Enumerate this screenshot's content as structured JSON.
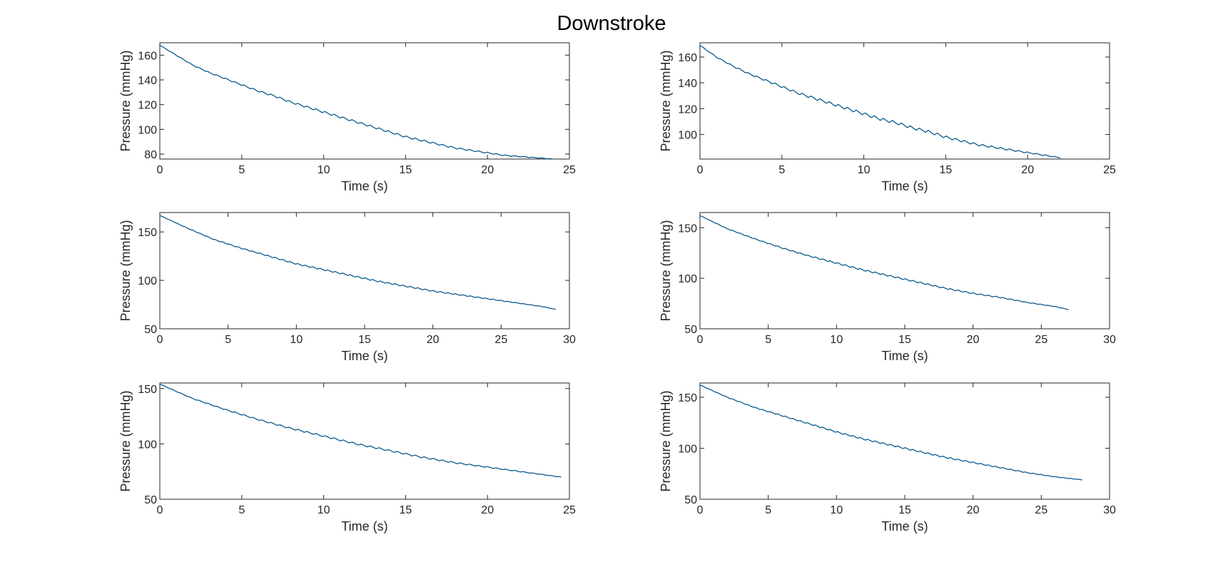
{
  "figure": {
    "title": "Downstroke",
    "line_color": "#0b5a8e",
    "axes_color": "#262626"
  },
  "chart_data": [
    {
      "type": "line",
      "xlabel": "Time (s)",
      "ylabel": "Pressure (mmHg)",
      "xlim": [
        0,
        25
      ],
      "ylim": [
        76,
        170
      ],
      "xticks": [
        0,
        5,
        10,
        15,
        20,
        25
      ],
      "yticks": [
        80,
        100,
        120,
        140,
        160
      ],
      "grid": false,
      "series": [
        {
          "x": [
            0,
            1,
            2,
            3,
            4,
            5,
            6,
            7,
            8,
            9,
            10,
            11,
            12,
            13,
            14,
            15,
            16,
            17,
            18,
            19,
            20,
            21,
            22,
            23,
            24
          ],
          "y": [
            168,
            160,
            152,
            146,
            141,
            136,
            131,
            127,
            122,
            118,
            114,
            110,
            106,
            102,
            98,
            94,
            91,
            88,
            85,
            83,
            81,
            79,
            78,
            77,
            76
          ],
          "ripple_period": 0.55,
          "ripple_amplitude": 1.6
        }
      ]
    },
    {
      "type": "line",
      "xlabel": "Time (s)",
      "ylabel": "Pressure (mmHg)",
      "xlim": [
        0,
        25
      ],
      "ylim": [
        81,
        171
      ],
      "xticks": [
        0,
        5,
        10,
        15,
        20,
        25
      ],
      "yticks": [
        100,
        120,
        140,
        160
      ],
      "grid": false,
      "series": [
        {
          "x": [
            0,
            1,
            2,
            3,
            4,
            5,
            6,
            7,
            8,
            9,
            10,
            11,
            12,
            13,
            14,
            15,
            16,
            17,
            18,
            19,
            20,
            21,
            22
          ],
          "y": [
            169,
            160,
            153,
            147,
            142,
            137,
            132,
            128,
            124,
            120,
            116,
            112,
            109,
            105,
            102,
            98,
            95,
            92,
            90,
            88,
            86,
            84,
            82
          ],
          "ripple_period": 0.55,
          "ripple_amplitude": 2.2
        }
      ]
    },
    {
      "type": "line",
      "xlabel": "Time (s)",
      "ylabel": "Pressure (mmHg)",
      "xlim": [
        0,
        30
      ],
      "ylim": [
        50,
        170
      ],
      "xticks": [
        0,
        5,
        10,
        15,
        20,
        25,
        30
      ],
      "yticks": [
        50,
        100,
        150
      ],
      "grid": false,
      "series": [
        {
          "x": [
            0,
            2,
            4,
            6,
            8,
            10,
            12,
            14,
            16,
            18,
            20,
            22,
            24,
            26,
            28,
            29
          ],
          "y": [
            167,
            154,
            142,
            133,
            125,
            117,
            111,
            105,
            99,
            94,
            89,
            85,
            81,
            77,
            73,
            70
          ],
          "ripple_period": 0.55,
          "ripple_amplitude": 1.4
        }
      ]
    },
    {
      "type": "line",
      "xlabel": "Time (s)",
      "ylabel": "Pressure (mmHg)",
      "xlim": [
        0,
        30
      ],
      "ylim": [
        50,
        165
      ],
      "xticks": [
        0,
        5,
        10,
        15,
        20,
        25,
        30
      ],
      "yticks": [
        50,
        100,
        150
      ],
      "grid": false,
      "series": [
        {
          "x": [
            0,
            2,
            4,
            6,
            8,
            10,
            12,
            14,
            16,
            18,
            20,
            22,
            24,
            26,
            27
          ],
          "y": [
            162,
            149,
            139,
            130,
            122,
            115,
            108,
            102,
            96,
            90,
            85,
            81,
            76,
            72,
            69
          ],
          "ripple_period": 0.55,
          "ripple_amplitude": 1.4
        }
      ]
    },
    {
      "type": "line",
      "xlabel": "Time (s)",
      "ylabel": "Pressure (mmHg)",
      "xlim": [
        0,
        25
      ],
      "ylim": [
        50,
        155
      ],
      "xticks": [
        0,
        5,
        10,
        15,
        20,
        25
      ],
      "yticks": [
        50,
        100,
        150
      ],
      "grid": false,
      "series": [
        {
          "x": [
            0,
            2,
            4,
            6,
            8,
            10,
            12,
            14,
            16,
            18,
            20,
            22,
            24,
            24.5
          ],
          "y": [
            154,
            141,
            131,
            122,
            114,
            107,
            100,
            94,
            88,
            83,
            79,
            75,
            71,
            70
          ],
          "ripple_period": 0.55,
          "ripple_amplitude": 1.5
        }
      ]
    },
    {
      "type": "line",
      "xlabel": "Time (s)",
      "ylabel": "Pressure (mmHg)",
      "xlim": [
        0,
        30
      ],
      "ylim": [
        50,
        164
      ],
      "xticks": [
        0,
        5,
        10,
        15,
        20,
        25,
        30
      ],
      "yticks": [
        50,
        100,
        150
      ],
      "grid": false,
      "series": [
        {
          "x": [
            0,
            2,
            4,
            6,
            8,
            10,
            12,
            14,
            16,
            18,
            20,
            22,
            24,
            26,
            28
          ],
          "y": [
            162,
            150,
            140,
            132,
            124,
            116,
            109,
            103,
            97,
            91,
            86,
            81,
            76,
            72,
            69
          ],
          "ripple_period": 0.55,
          "ripple_amplitude": 1.4
        }
      ]
    }
  ]
}
